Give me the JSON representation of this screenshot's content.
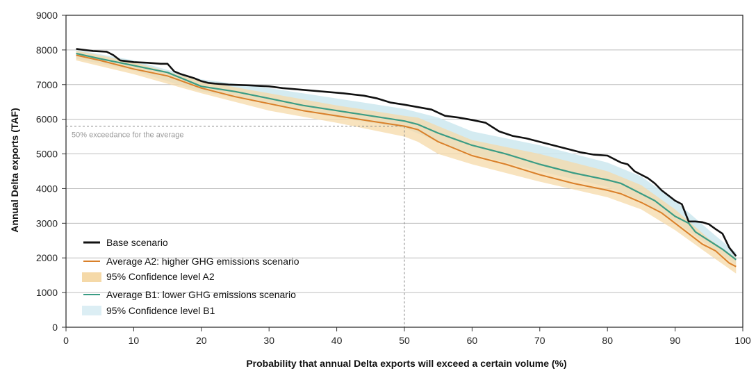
{
  "chart_data": {
    "type": "line",
    "xlabel": "Probability that annual Delta exports will exceed a certain volume (%)",
    "ylabel": "Annual Delta exports (TAF)",
    "xlim": [
      0,
      100
    ],
    "ylim": [
      0,
      9000
    ],
    "x_ticks": [
      "0",
      "10",
      "20",
      "30",
      "40",
      "50",
      "60",
      "70",
      "80",
      "90",
      "100"
    ],
    "y_ticks": [
      "0",
      "1000",
      "2000",
      "3000",
      "4000",
      "5000",
      "6000",
      "7000",
      "8000",
      "9000"
    ],
    "grid": "horizontal",
    "legend_position": "bottom-left",
    "series": [
      {
        "name": "Base scenario",
        "color": "#111111",
        "x": [
          1.5,
          4,
          6,
          7,
          8,
          10,
          12,
          14,
          15,
          16,
          17,
          19,
          20,
          21,
          22,
          24,
          27,
          30,
          32,
          35,
          38,
          41,
          44,
          46,
          48,
          50,
          52,
          54,
          56,
          58,
          60,
          62,
          64,
          66,
          68,
          70,
          72,
          74,
          76,
          78,
          80,
          82,
          83,
          84,
          85,
          86,
          87,
          88,
          89,
          90,
          91,
          92,
          93,
          94,
          95,
          96,
          97,
          98,
          99
        ],
        "y": [
          8030,
          7970,
          7950,
          7850,
          7700,
          7650,
          7630,
          7600,
          7600,
          7380,
          7300,
          7180,
          7100,
          7050,
          7030,
          7000,
          6980,
          6950,
          6900,
          6850,
          6800,
          6750,
          6680,
          6600,
          6480,
          6420,
          6350,
          6280,
          6100,
          6050,
          5980,
          5900,
          5650,
          5520,
          5450,
          5350,
          5250,
          5150,
          5050,
          4980,
          4950,
          4750,
          4700,
          4500,
          4400,
          4300,
          4150,
          3950,
          3800,
          3650,
          3550,
          3050,
          3050,
          3030,
          2970,
          2830,
          2700,
          2300,
          2050
        ]
      },
      {
        "name": "Average A2: higher GHG emissions scenario",
        "color": "#d9802a",
        "x": [
          1.5,
          5,
          10,
          15,
          20,
          25,
          30,
          35,
          40,
          45,
          50,
          52,
          55,
          60,
          65,
          70,
          75,
          80,
          82,
          85,
          88,
          90,
          92,
          94,
          96,
          98,
          99
        ],
        "y": [
          7850,
          7700,
          7450,
          7250,
          6900,
          6650,
          6450,
          6250,
          6100,
          5950,
          5800,
          5700,
          5350,
          4950,
          4700,
          4400,
          4150,
          3950,
          3850,
          3600,
          3300,
          3000,
          2700,
          2400,
          2200,
          1850,
          1750
        ]
      },
      {
        "name": "95% Confidence level A2",
        "color": "#f5d9a8",
        "x": [
          1.5,
          10,
          20,
          30,
          40,
          50,
          52,
          55,
          60,
          70,
          80,
          85,
          90,
          95,
          99
        ],
        "y_low": [
          7700,
          7300,
          6750,
          6250,
          5900,
          5500,
          5350,
          5000,
          4700,
          4200,
          3750,
          3400,
          2800,
          2100,
          1550
        ],
        "y_high": [
          7980,
          7650,
          7100,
          6750,
          6400,
          6100,
          6050,
          5800,
          5400,
          5000,
          4500,
          4100,
          3400,
          2550,
          2000
        ]
      },
      {
        "name": "Average B1: lower GHG emissions scenario",
        "color": "#3a9c84",
        "x": [
          1.5,
          5,
          10,
          15,
          20,
          25,
          30,
          35,
          40,
          45,
          50,
          52,
          55,
          60,
          65,
          70,
          75,
          80,
          82,
          85,
          87,
          88,
          90,
          92,
          93,
          95,
          97,
          99
        ],
        "y": [
          7900,
          7750,
          7550,
          7350,
          6950,
          6800,
          6600,
          6400,
          6250,
          6100,
          5950,
          5850,
          5600,
          5250,
          5000,
          4700,
          4450,
          4250,
          4150,
          3850,
          3650,
          3500,
          3200,
          3000,
          2750,
          2500,
          2250,
          1950
        ]
      },
      {
        "name": "95% Confidence level B1",
        "color": "#cce8ef",
        "x": [
          1.5,
          10,
          20,
          30,
          40,
          50,
          55,
          60,
          70,
          80,
          85,
          90,
          95,
          99
        ],
        "y_low": [
          7750,
          7400,
          6800,
          6450,
          6050,
          5750,
          5350,
          5000,
          4500,
          4050,
          3650,
          3050,
          2350,
          1800
        ],
        "y_high": [
          8000,
          7700,
          7150,
          6900,
          6600,
          6300,
          6050,
          5650,
          5250,
          4750,
          4350,
          3650,
          2800,
          2150
        ]
      }
    ],
    "annotations": [
      {
        "text": "50% exceedance for the average",
        "x": 50,
        "y": 5800
      }
    ]
  }
}
